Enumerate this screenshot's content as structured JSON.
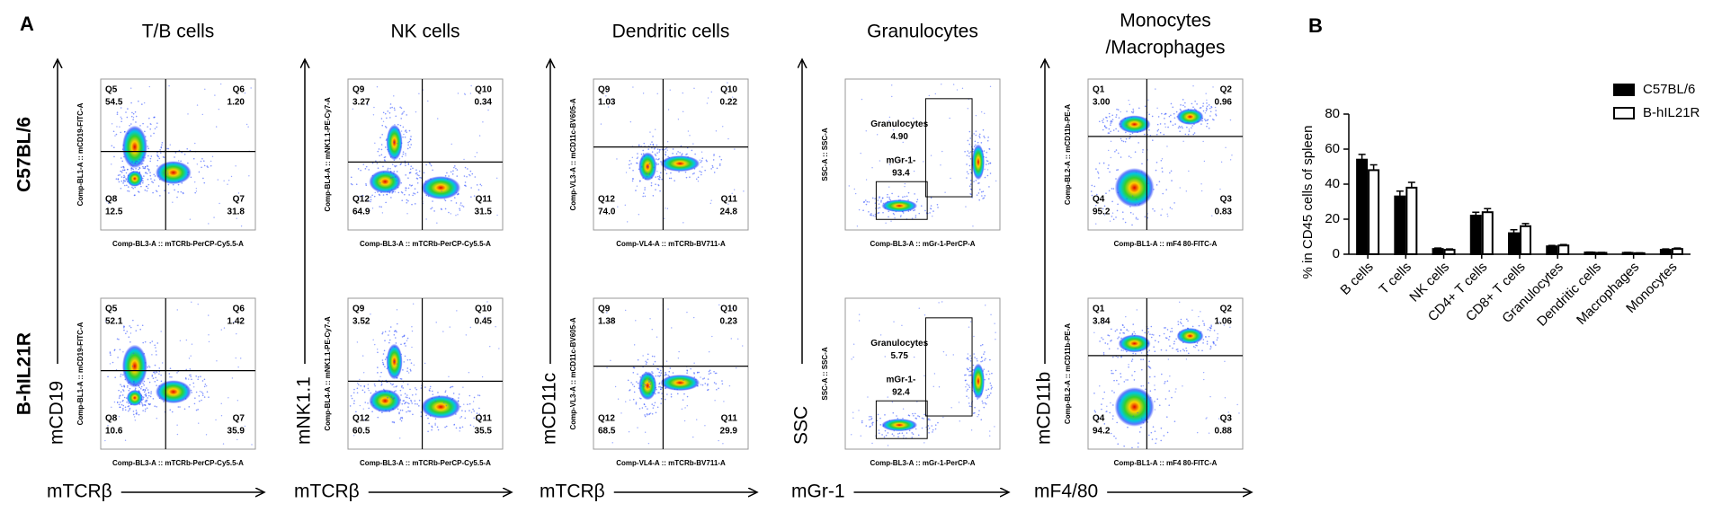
{
  "panel_a": {
    "label": "A",
    "rows": [
      "C57BL/6",
      "B-hIL21R"
    ],
    "columns": [
      {
        "title_lines": [
          "T/B cells"
        ],
        "y_axis_label": "mCD19",
        "x_axis_label": "mTCRβ",
        "plot_x_title": "Comp-BL3-A :: mTCRb-PerCP-Cy5.5-A",
        "plot_y_title": "Comp-BL1-A :: mCD19-FITC-A",
        "plots": [
          {
            "gates": [
              {
                "name": "Q5",
                "value": "54.5"
              },
              {
                "name": "Q6",
                "value": "1.20"
              },
              {
                "name": "Q8",
                "value": "12.5"
              },
              {
                "name": "Q7",
                "value": "31.8"
              }
            ]
          },
          {
            "gates": [
              {
                "name": "Q5",
                "value": "52.1"
              },
              {
                "name": "Q6",
                "value": "1.42"
              },
              {
                "name": "Q8",
                "value": "10.6"
              },
              {
                "name": "Q7",
                "value": "35.9"
              }
            ]
          }
        ]
      },
      {
        "title_lines": [
          "NK cells"
        ],
        "y_axis_label": "mNK1.1",
        "x_axis_label": "mTCRβ",
        "plot_x_title": "Comp-BL3-A :: mTCRb-PerCP-Cy5.5-A",
        "plot_y_title": "Comp-BL4-A :: mNK1.1-PE-Cy7-A",
        "plots": [
          {
            "gates": [
              {
                "name": "Q9",
                "value": "3.27"
              },
              {
                "name": "Q10",
                "value": "0.34"
              },
              {
                "name": "Q12",
                "value": "64.9"
              },
              {
                "name": "Q11",
                "value": "31.5"
              }
            ]
          },
          {
            "gates": [
              {
                "name": "Q9",
                "value": "3.52"
              },
              {
                "name": "Q10",
                "value": "0.45"
              },
              {
                "name": "Q12",
                "value": "60.5"
              },
              {
                "name": "Q11",
                "value": "35.5"
              }
            ]
          }
        ]
      },
      {
        "title_lines": [
          "Dendritic cells"
        ],
        "y_axis_label": "mCD11c",
        "x_axis_label": "mTCRβ",
        "plot_x_title": "Comp-VL4-A :: mTCRb-BV711-A",
        "plot_y_title": "Comp-VL3-A :: mCD11c-BV605-A",
        "plots": [
          {
            "gates": [
              {
                "name": "Q9",
                "value": "1.03"
              },
              {
                "name": "Q10",
                "value": "0.22"
              },
              {
                "name": "Q12",
                "value": "74.0"
              },
              {
                "name": "Q11",
                "value": "24.8"
              }
            ]
          },
          {
            "gates": [
              {
                "name": "Q9",
                "value": "1.38"
              },
              {
                "name": "Q10",
                "value": "0.23"
              },
              {
                "name": "Q12",
                "value": "68.5"
              },
              {
                "name": "Q11",
                "value": "29.9"
              }
            ]
          }
        ]
      },
      {
        "title_lines": [
          "Granulocytes"
        ],
        "y_axis_label": "SSC",
        "x_axis_label": "mGr-1",
        "plot_x_title": "Comp-BL3-A :: mGr-1-PerCP-A",
        "plot_y_title": "SSC-A :: SSC-A",
        "plots": [
          {
            "gates": [
              {
                "name": "Granulocytes",
                "value": "4.90"
              },
              {
                "name": "mGr-1-",
                "value": "93.4"
              }
            ]
          },
          {
            "gates": [
              {
                "name": "Granulocytes",
                "value": "5.75"
              },
              {
                "name": "mGr-1-",
                "value": "92.4"
              }
            ]
          }
        ]
      },
      {
        "title_lines": [
          "Monocytes",
          "/Macrophages"
        ],
        "y_axis_label": "mCD11b",
        "x_axis_label": "mF4/80",
        "plot_x_title": "Comp-BL1-A :: mF4 80-FITC-A",
        "plot_y_title": "Comp-BL2-A :: mCD11b-PE-A",
        "plots": [
          {
            "gates": [
              {
                "name": "Q1",
                "value": "3.00"
              },
              {
                "name": "Q2",
                "value": "0.96"
              },
              {
                "name": "Q4",
                "value": "95.2"
              },
              {
                "name": "Q3",
                "value": "0.83"
              }
            ]
          },
          {
            "gates": [
              {
                "name": "Q1",
                "value": "3.84"
              },
              {
                "name": "Q2",
                "value": "1.06"
              },
              {
                "name": "Q4",
                "value": "94.2"
              },
              {
                "name": "Q3",
                "value": "0.88"
              }
            ]
          }
        ]
      }
    ]
  },
  "chart_data": {
    "type": "bar",
    "panel_label": "B",
    "y_label": "% in CD45 cells of spleen",
    "categories": [
      "B cells",
      "T cells",
      "NK cells",
      "CD4+ T cells",
      "CD8+ T cells",
      "Granulocytes",
      "Dendritic cells",
      "Macrophages",
      "Monocytes"
    ],
    "series": [
      {
        "name": "C57BL/6",
        "color": "#000000",
        "values": [
          54,
          33,
          3,
          22,
          12,
          4.5,
          1,
          0.8,
          2.5
        ],
        "errors": [
          3,
          3,
          0.5,
          2,
          2,
          0.5,
          0.2,
          0.2,
          0.5
        ]
      },
      {
        "name": "B-hIL21R",
        "color": "#ffffff",
        "values": [
          48,
          38,
          2.5,
          24,
          16,
          5,
          0.8,
          0.6,
          3
        ],
        "errors": [
          3,
          3,
          0.5,
          2,
          1.5,
          0.5,
          0.2,
          0.2,
          0.5
        ]
      }
    ],
    "ylim": [
      0,
      80
    ],
    "yticks": [
      0,
      20,
      40,
      60,
      80
    ],
    "legend": "top-right"
  }
}
